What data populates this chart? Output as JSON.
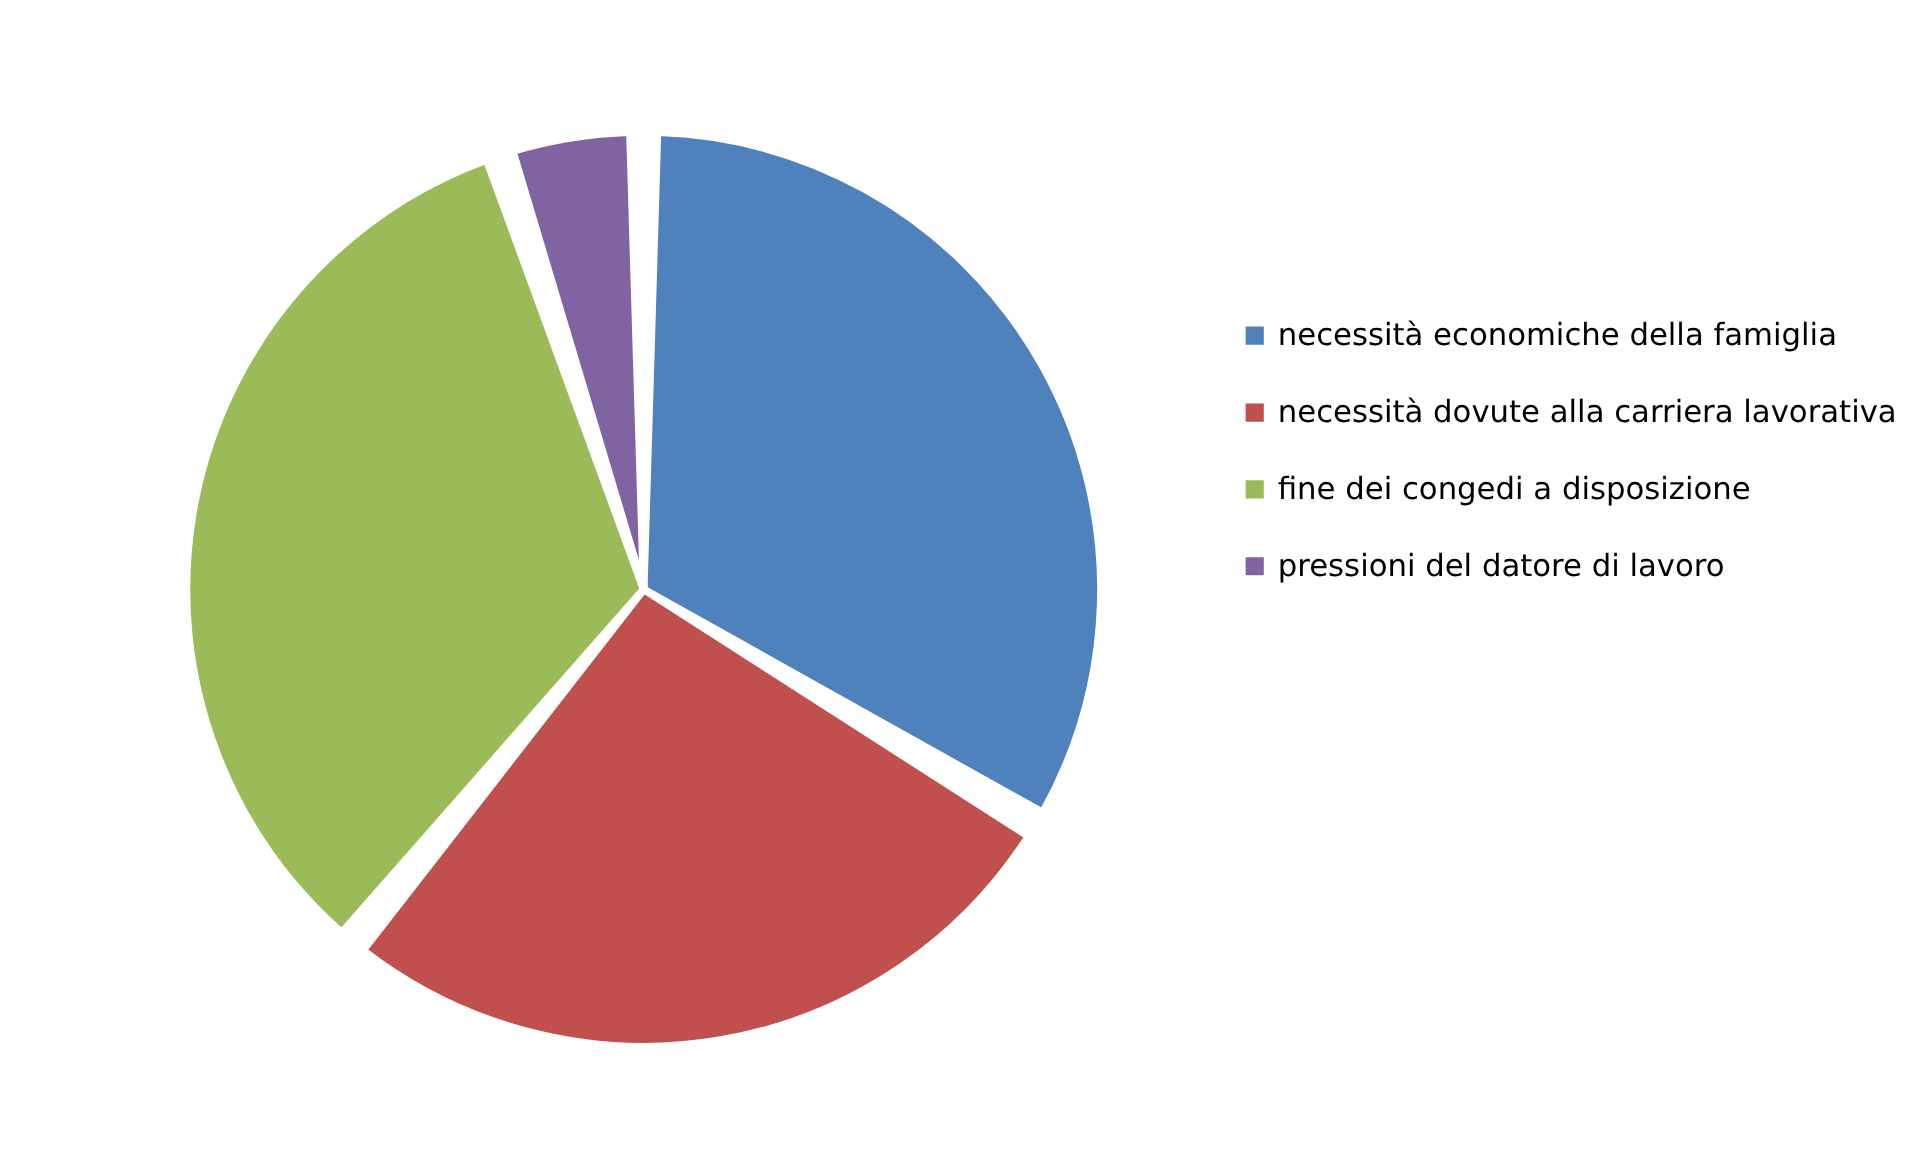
{
  "chart_data": {
    "type": "pie",
    "categories": [
      "necessità economiche della famiglia",
      "necessità dovute alla carriera lavorativa",
      "fine dei congedi a disposizione",
      "pressioni del datore di lavoro"
    ],
    "values": [
      33.6,
      27.4,
      33.9,
      5.1
    ],
    "colors": [
      "#4f81bd",
      "#c0504d",
      "#9bbb59",
      "#8064a2"
    ],
    "legend": "right"
  }
}
